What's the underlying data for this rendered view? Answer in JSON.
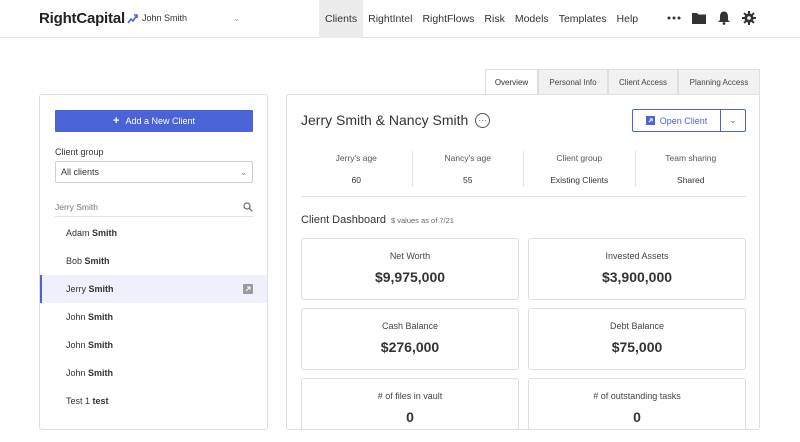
{
  "app": {
    "logo_text": "RightCapital",
    "current_user": "John Smith"
  },
  "nav": {
    "items": [
      "Clients",
      "RightIntel",
      "RightFlows",
      "Risk",
      "Models",
      "Templates",
      "Help"
    ],
    "active": "Clients",
    "icons": [
      "more-icon",
      "folder-icon",
      "bell-icon",
      "gear-icon"
    ]
  },
  "tabs": [
    "Overview",
    "Personal Info",
    "Client Access",
    "Planning Access"
  ],
  "sidebar": {
    "add_button": "Add a New Client",
    "group_label": "Client group",
    "group_value": "All clients",
    "search_placeholder": "Jerry Smith",
    "clients": [
      {
        "first": "Adam",
        "last": "Smith"
      },
      {
        "first": "Bob",
        "last": "Smith"
      },
      {
        "first": "Jerry",
        "last": "Smith",
        "selected": true
      },
      {
        "first": "John",
        "last": "Smith"
      },
      {
        "first": "John",
        "last": "Smith"
      },
      {
        "first": "John",
        "last": "Smith"
      },
      {
        "first": "Test 1",
        "last": "test"
      }
    ]
  },
  "client": {
    "name": "Jerry Smith & Nancy Smith",
    "open_button": "Open Client",
    "stats": [
      {
        "label": "Jerry's age",
        "value": "60"
      },
      {
        "label": "Nancy's age",
        "value": "55"
      },
      {
        "label": "Client group",
        "value": "Existing Clients"
      },
      {
        "label": "Team sharing",
        "value": "Shared"
      }
    ]
  },
  "dashboard": {
    "title": "Client Dashboard",
    "subtitle": "$ values as of 7/21",
    "cards": [
      {
        "label": "Net Worth",
        "value": "$9,975,000"
      },
      {
        "label": "Invested Assets",
        "value": "$3,900,000"
      },
      {
        "label": "Cash Balance",
        "value": "$276,000"
      },
      {
        "label": "Debt Balance",
        "value": "$75,000"
      },
      {
        "label": "# of files in vault",
        "value": "0"
      },
      {
        "label": "# of outstanding tasks",
        "value": "0"
      }
    ]
  },
  "colors": {
    "accent": "#4a63d6",
    "selected_bg": "#eef0fb"
  }
}
